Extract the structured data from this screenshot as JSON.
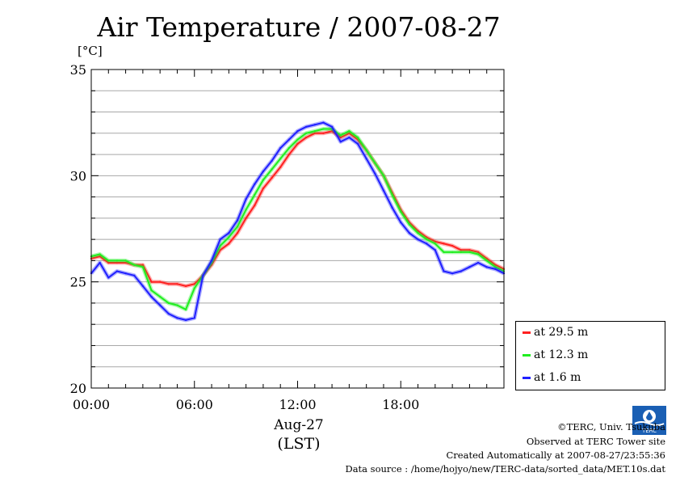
{
  "page": {
    "title": "Air Temperature / 2007-08-27",
    "unit_label": "[°C]",
    "x_date_label": "Aug-27",
    "x_tz_label": "(LST)",
    "credit": "©TERC, Univ. Tsukuba",
    "observed": "Observed at TERC Tower site",
    "created": "Created Automatically at 2007-08-27/23:55:36",
    "source": "Data source : /home/hojyo/new/TERC-data/sorted_data/MET.10s.dat",
    "logo_text": "TERC"
  },
  "chart_data": {
    "type": "line",
    "title": "Air Temperature / 2007-08-27",
    "xlabel": "(LST)",
    "ylabel": "[°C]",
    "xlim": [
      0,
      24
    ],
    "ylim": [
      20,
      35
    ],
    "x_ticks": [
      0,
      6,
      12,
      18
    ],
    "x_tick_labels": [
      "00:00",
      "06:00",
      "12:00",
      "18:00"
    ],
    "y_ticks": [
      20,
      25,
      30,
      35
    ],
    "y_tick_labels": [
      "20",
      "25",
      "30",
      "35"
    ],
    "grid": true,
    "legend_position": "bottom-right, outside plot",
    "x": [
      0,
      0.5,
      1,
      1.5,
      2,
      2.5,
      3,
      3.5,
      4,
      4.5,
      5,
      5.5,
      6,
      6.5,
      7,
      7.5,
      8,
      8.5,
      9,
      9.5,
      10,
      10.5,
      11,
      11.5,
      12,
      12.5,
      13,
      13.5,
      14,
      14.5,
      15,
      15.5,
      16,
      16.5,
      17,
      17.5,
      18,
      18.5,
      19,
      19.5,
      20,
      20.5,
      21,
      21.5,
      22,
      22.5,
      23,
      23.5,
      24
    ],
    "series": [
      {
        "name": "at 29.5 m",
        "color": "#ff2020",
        "values": [
          26.1,
          26.2,
          25.9,
          25.9,
          25.9,
          25.8,
          25.8,
          25.0,
          25.0,
          24.9,
          24.9,
          24.8,
          24.9,
          25.3,
          25.8,
          26.5,
          26.8,
          27.3,
          28.0,
          28.6,
          29.4,
          29.9,
          30.4,
          31.0,
          31.5,
          31.8,
          32.0,
          32.0,
          32.1,
          31.8,
          32.0,
          31.7,
          31.2,
          30.6,
          30.0,
          29.2,
          28.4,
          27.8,
          27.4,
          27.1,
          26.9,
          26.8,
          26.7,
          26.5,
          26.5,
          26.4,
          26.1,
          25.8,
          25.6
        ]
      },
      {
        "name": "at 12.3 m",
        "color": "#20ee20",
        "values": [
          26.2,
          26.3,
          26.0,
          26.0,
          26.0,
          25.8,
          25.7,
          24.6,
          24.3,
          24.0,
          23.9,
          23.7,
          24.7,
          25.3,
          25.9,
          26.7,
          27.1,
          27.6,
          28.4,
          29.1,
          29.8,
          30.3,
          30.8,
          31.3,
          31.7,
          32.0,
          32.1,
          32.2,
          32.2,
          31.9,
          32.1,
          31.8,
          31.2,
          30.6,
          30.0,
          29.1,
          28.3,
          27.7,
          27.3,
          27.0,
          26.8,
          26.4,
          26.4,
          26.4,
          26.4,
          26.3,
          26.0,
          25.7,
          25.5
        ]
      },
      {
        "name": "at 1.6 m",
        "color": "#2020ff",
        "values": [
          25.4,
          25.9,
          25.2,
          25.5,
          25.4,
          25.3,
          24.8,
          24.3,
          23.9,
          23.5,
          23.3,
          23.2,
          23.3,
          25.3,
          26.0,
          27.0,
          27.3,
          27.9,
          28.9,
          29.6,
          30.2,
          30.7,
          31.3,
          31.7,
          32.1,
          32.3,
          32.4,
          32.5,
          32.3,
          31.6,
          31.8,
          31.5,
          30.8,
          30.1,
          29.3,
          28.5,
          27.8,
          27.3,
          27.0,
          26.8,
          26.5,
          25.5,
          25.4,
          25.5,
          25.7,
          25.9,
          25.7,
          25.6,
          25.4
        ]
      }
    ]
  }
}
